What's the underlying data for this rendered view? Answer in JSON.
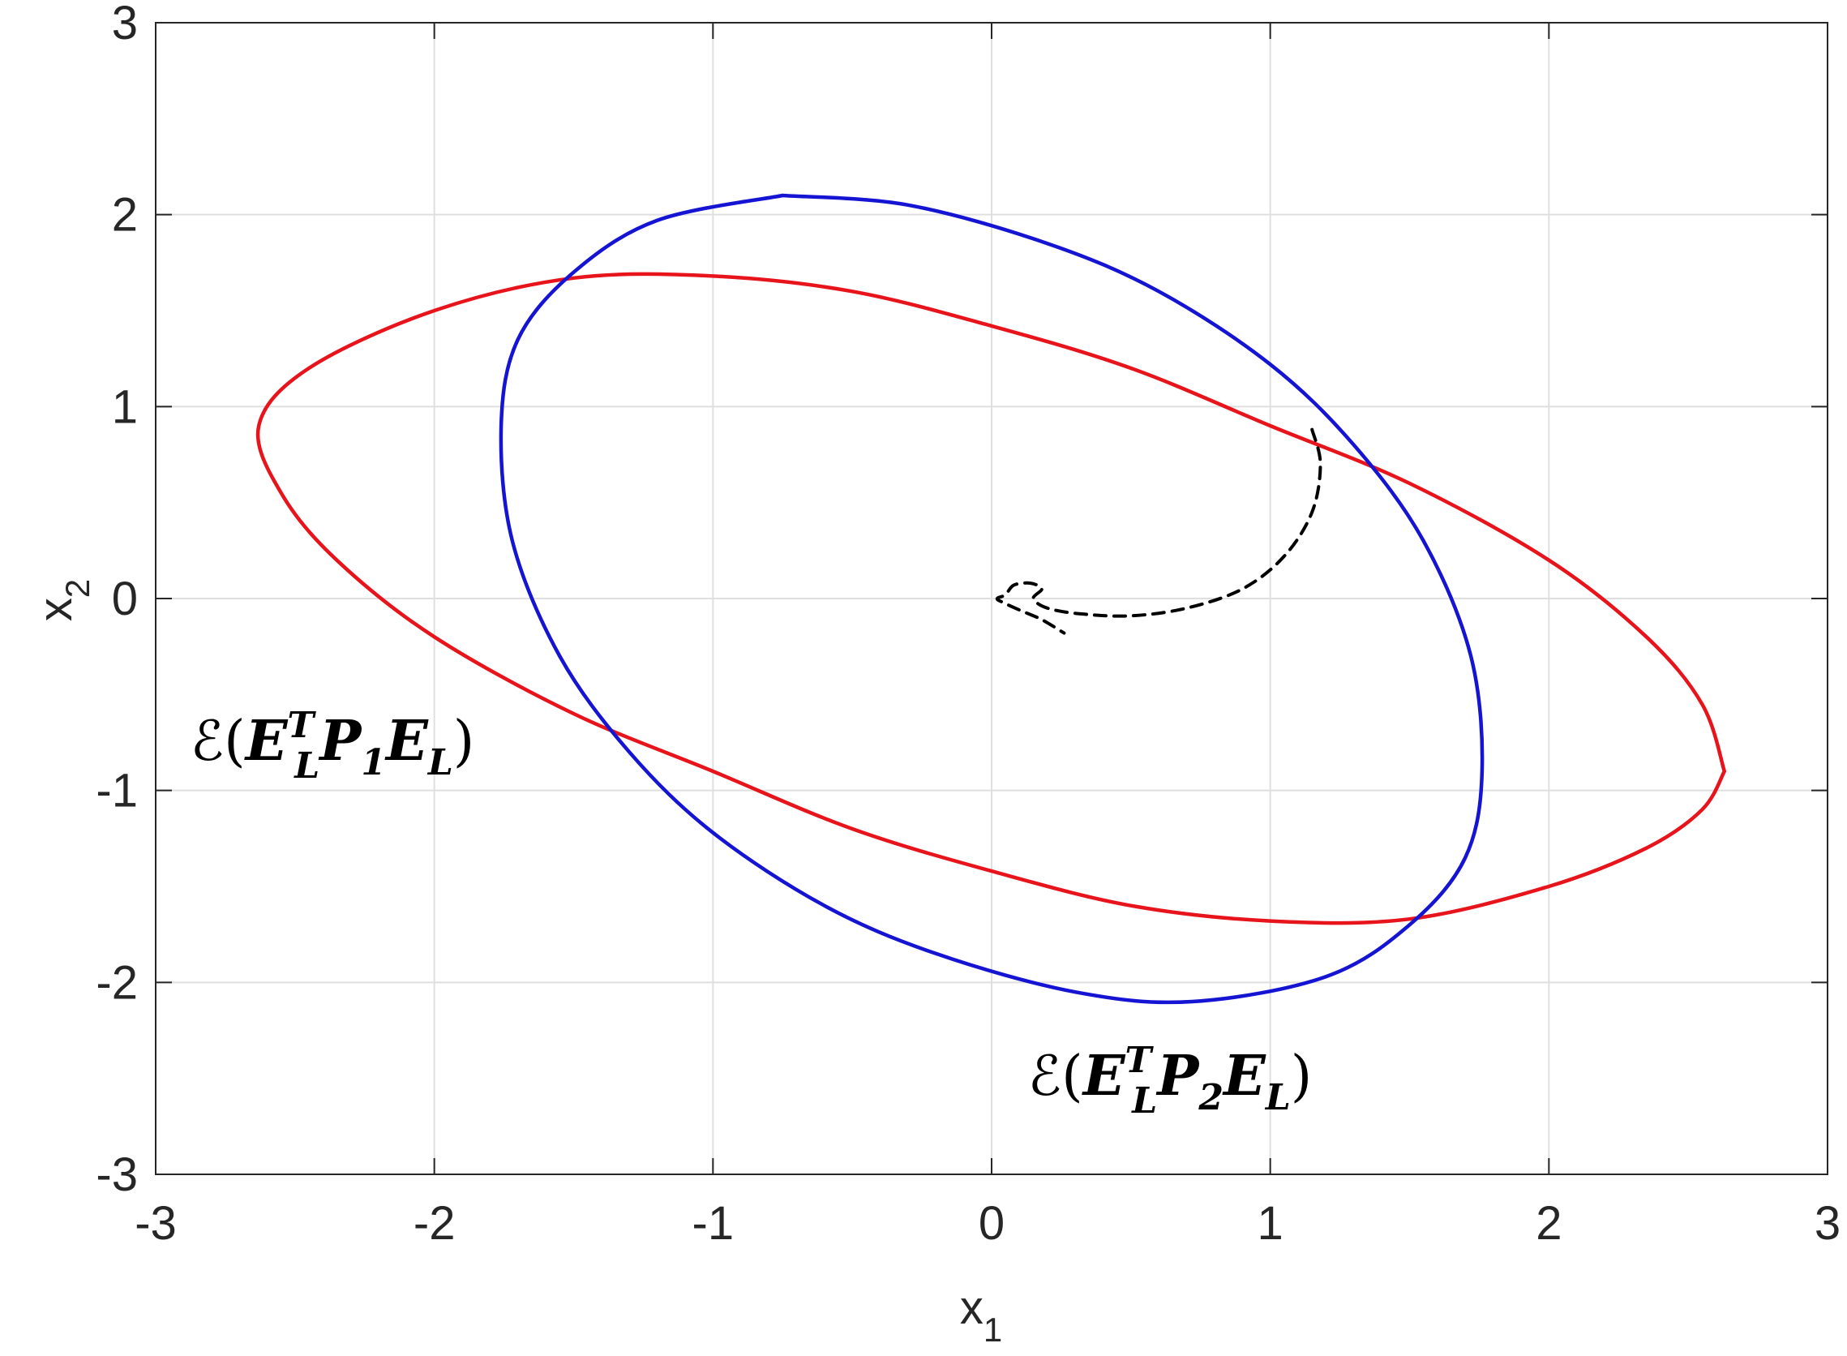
{
  "chart_data": {
    "type": "line",
    "xlabel": {
      "base": "x",
      "sub": "1"
    },
    "ylabel": {
      "base": "x",
      "sub": "2"
    },
    "xlim": [
      -3,
      3
    ],
    "ylim": [
      -3,
      3
    ],
    "grid": true,
    "x_ticks": [
      -3,
      -2,
      -1,
      0,
      1,
      2,
      3
    ],
    "y_ticks": [
      -3,
      -2,
      -1,
      0,
      1,
      2,
      3
    ],
    "x_tick_labels": [
      "-3",
      "-2",
      "-1",
      "0",
      "1",
      "2",
      "3"
    ],
    "y_tick_labels": [
      "-3",
      "-2",
      "-1",
      "0",
      "1",
      "2",
      "3"
    ],
    "series": [
      {
        "color": "#e8141c",
        "style": "solid",
        "x": [
          2.63,
          2.55,
          2.35,
          2.0,
          1.5,
          1.0,
          0.5,
          0.0,
          -0.5,
          -1.0,
          -1.5,
          -2.0,
          -2.45,
          -2.63,
          -2.55,
          -2.35,
          -2.0,
          -1.5,
          -1.0,
          -0.5,
          0.0,
          0.5,
          1.0,
          1.5,
          2.0,
          2.35,
          2.55,
          2.63
        ],
        "y": [
          -0.9,
          -0.55,
          -0.2,
          0.2,
          0.6,
          0.9,
          1.2,
          1.42,
          1.6,
          1.68,
          1.67,
          1.5,
          1.2,
          0.9,
          0.55,
          0.2,
          -0.2,
          -0.6,
          -0.9,
          -1.2,
          -1.42,
          -1.6,
          -1.68,
          -1.67,
          -1.5,
          -1.3,
          -1.1,
          -0.9
        ],
        "label": "ℰ(E_L^T P_1 E_L)"
      },
      {
        "color": "#1414d2",
        "style": "solid",
        "x": [
          -0.75,
          -0.3,
          0.2,
          0.6,
          1.0,
          1.3,
          1.55,
          1.72,
          1.76,
          1.7,
          1.5,
          1.2,
          0.72,
          0.3,
          -0.2,
          -0.6,
          -1.0,
          -1.3,
          -1.55,
          -1.72,
          -1.76,
          -1.7,
          -1.5,
          -1.2,
          -0.75
        ],
        "y": [
          2.1,
          2.05,
          1.85,
          1.6,
          1.22,
          0.8,
          0.3,
          -0.3,
          -0.9,
          -1.35,
          -1.7,
          -1.97,
          -2.1,
          -2.05,
          -1.85,
          -1.6,
          -1.22,
          -0.8,
          -0.3,
          0.3,
          0.9,
          1.35,
          1.7,
          1.97,
          2.1
        ],
        "label": "ℰ(E_L^T P_2 E_L)"
      },
      {
        "color": "#000000",
        "style": "dashed",
        "x": [
          1.15,
          1.18,
          1.15,
          1.05,
          0.9,
          0.7,
          0.5,
          0.32,
          0.2,
          0.15,
          0.18,
          0.14,
          0.08,
          0.05,
          0.02,
          0.04,
          0.1,
          0.18,
          0.26
        ],
        "y": [
          0.88,
          0.7,
          0.45,
          0.22,
          0.05,
          -0.05,
          -0.09,
          -0.08,
          -0.05,
          0.0,
          0.05,
          0.08,
          0.07,
          0.02,
          0.0,
          -0.02,
          -0.06,
          -0.11,
          -0.18
        ],
        "label": ""
      }
    ],
    "annotations": [
      {
        "text": {
          "eps": "ℰ(",
          "e1": "E",
          "sup": "T",
          "sub1": "L",
          "p": "P",
          "psub": "1",
          "e2": "E",
          "sub2": "L",
          "close": ")"
        },
        "x": -2.87,
        "y": -0.72
      },
      {
        "text": {
          "eps": "ℰ(",
          "e1": "E",
          "sup": "T",
          "sub1": "L",
          "p": "P",
          "psub": "2",
          "e2": "E",
          "sub2": "L",
          "close": ")"
        },
        "x": 0.15,
        "y": -2.45
      }
    ]
  }
}
